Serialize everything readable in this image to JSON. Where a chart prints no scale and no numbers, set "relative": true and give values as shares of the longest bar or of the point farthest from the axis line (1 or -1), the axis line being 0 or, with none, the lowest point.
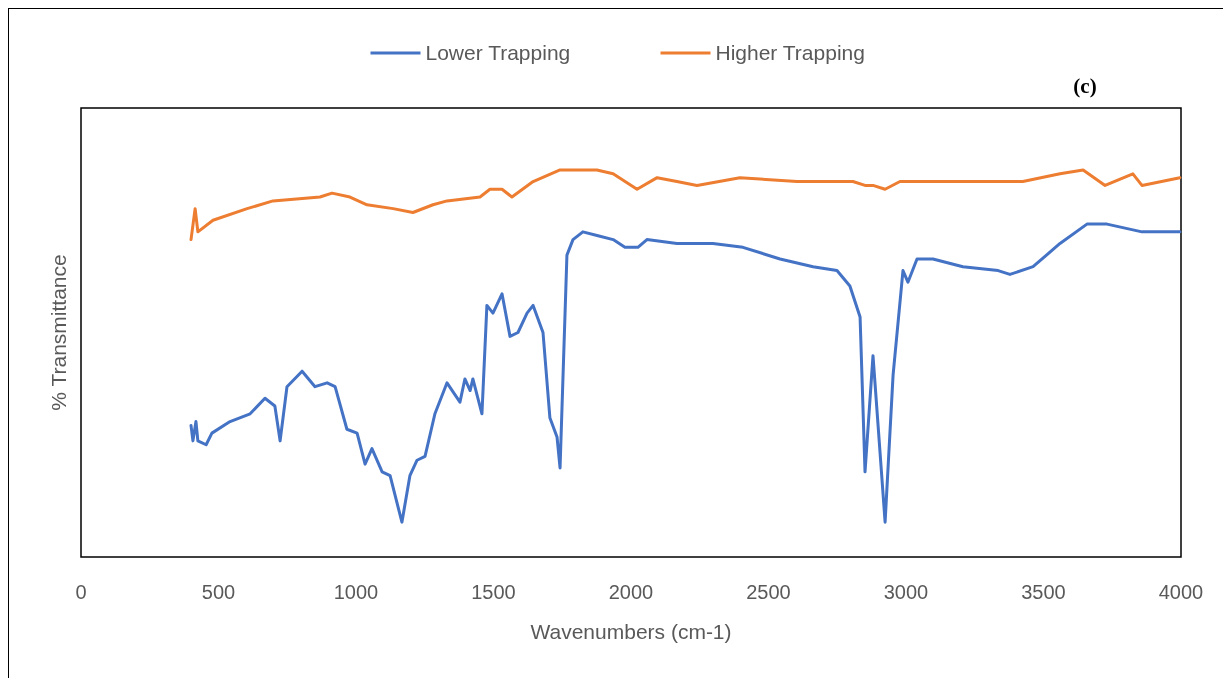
{
  "chart_data": {
    "type": "line",
    "relative": true,
    "xlabel": "Wavenumbers (cm-1)",
    "ylabel": "% Transmittance",
    "annotations": [
      "(c)"
    ],
    "legend": "top",
    "grid": false,
    "xlim": [
      0,
      4000
    ],
    "xticks": [
      0,
      500,
      1000,
      1500,
      2000,
      2500,
      3000,
      3500,
      4000
    ],
    "series": [
      {
        "name": "Lower Trapping",
        "color": "#4472c4",
        "x": [
          400,
          407,
          418,
          425,
          455,
          476,
          542,
          615,
          669,
          705,
          724,
          749,
          804,
          851,
          895,
          924,
          967,
          1004,
          1033,
          1058,
          1095,
          1124,
          1167,
          1196,
          1222,
          1251,
          1287,
          1331,
          1378,
          1396,
          1415,
          1425,
          1458,
          1476,
          1498,
          1531,
          1560,
          1589,
          1622,
          1644,
          1680,
          1705,
          1731,
          1742,
          1767,
          1789,
          1825,
          1880,
          1935,
          1978,
          2025,
          2058,
          2167,
          2298,
          2407,
          2542,
          2662,
          2749,
          2796,
          2833,
          2851,
          2880,
          2924,
          2953,
          2989,
          3007,
          3040,
          3098,
          3207,
          3335,
          3378,
          3462,
          3560,
          3658,
          3731,
          3858,
          3996
        ],
        "values": [
          0.34,
          0.3,
          0.35,
          0.3,
          0.29,
          0.32,
          0.35,
          0.37,
          0.41,
          0.39,
          0.3,
          0.44,
          0.48,
          0.44,
          0.45,
          0.44,
          0.33,
          0.32,
          0.24,
          0.28,
          0.22,
          0.21,
          0.09,
          0.21,
          0.25,
          0.26,
          0.37,
          0.45,
          0.4,
          0.46,
          0.43,
          0.46,
          0.37,
          0.65,
          0.63,
          0.68,
          0.57,
          0.58,
          0.63,
          0.65,
          0.58,
          0.36,
          0.31,
          0.23,
          0.78,
          0.82,
          0.84,
          0.83,
          0.82,
          0.8,
          0.8,
          0.82,
          0.81,
          0.81,
          0.8,
          0.77,
          0.75,
          0.74,
          0.7,
          0.62,
          0.22,
          0.52,
          0.09,
          0.47,
          0.74,
          0.71,
          0.77,
          0.77,
          0.75,
          0.74,
          0.73,
          0.75,
          0.81,
          0.86,
          0.86,
          0.84,
          0.84
        ]
      },
      {
        "name": "Higher Trapping",
        "color": "#ed7d31",
        "x": [
          400,
          415,
          425,
          480,
          604,
          698,
          869,
          913,
          978,
          1040,
          1135,
          1207,
          1280,
          1331,
          1451,
          1487,
          1531,
          1567,
          1644,
          1742,
          1789,
          1876,
          1935,
          2022,
          2095,
          2167,
          2240,
          2396,
          2604,
          2807,
          2851,
          2880,
          2924,
          2978,
          3335,
          3425,
          3560,
          3644,
          3724,
          3825,
          3858,
          3996
        ],
        "values": [
          0.82,
          0.9,
          0.84,
          0.87,
          0.9,
          0.92,
          0.93,
          0.94,
          0.93,
          0.91,
          0.9,
          0.89,
          0.91,
          0.92,
          0.93,
          0.95,
          0.95,
          0.93,
          0.97,
          1.0,
          1.0,
          1.0,
          0.99,
          0.95,
          0.98,
          0.97,
          0.96,
          0.98,
          0.97,
          0.97,
          0.96,
          0.96,
          0.95,
          0.97,
          0.97,
          0.97,
          0.99,
          1.0,
          0.96,
          0.99,
          0.96,
          0.98
        ]
      }
    ]
  }
}
